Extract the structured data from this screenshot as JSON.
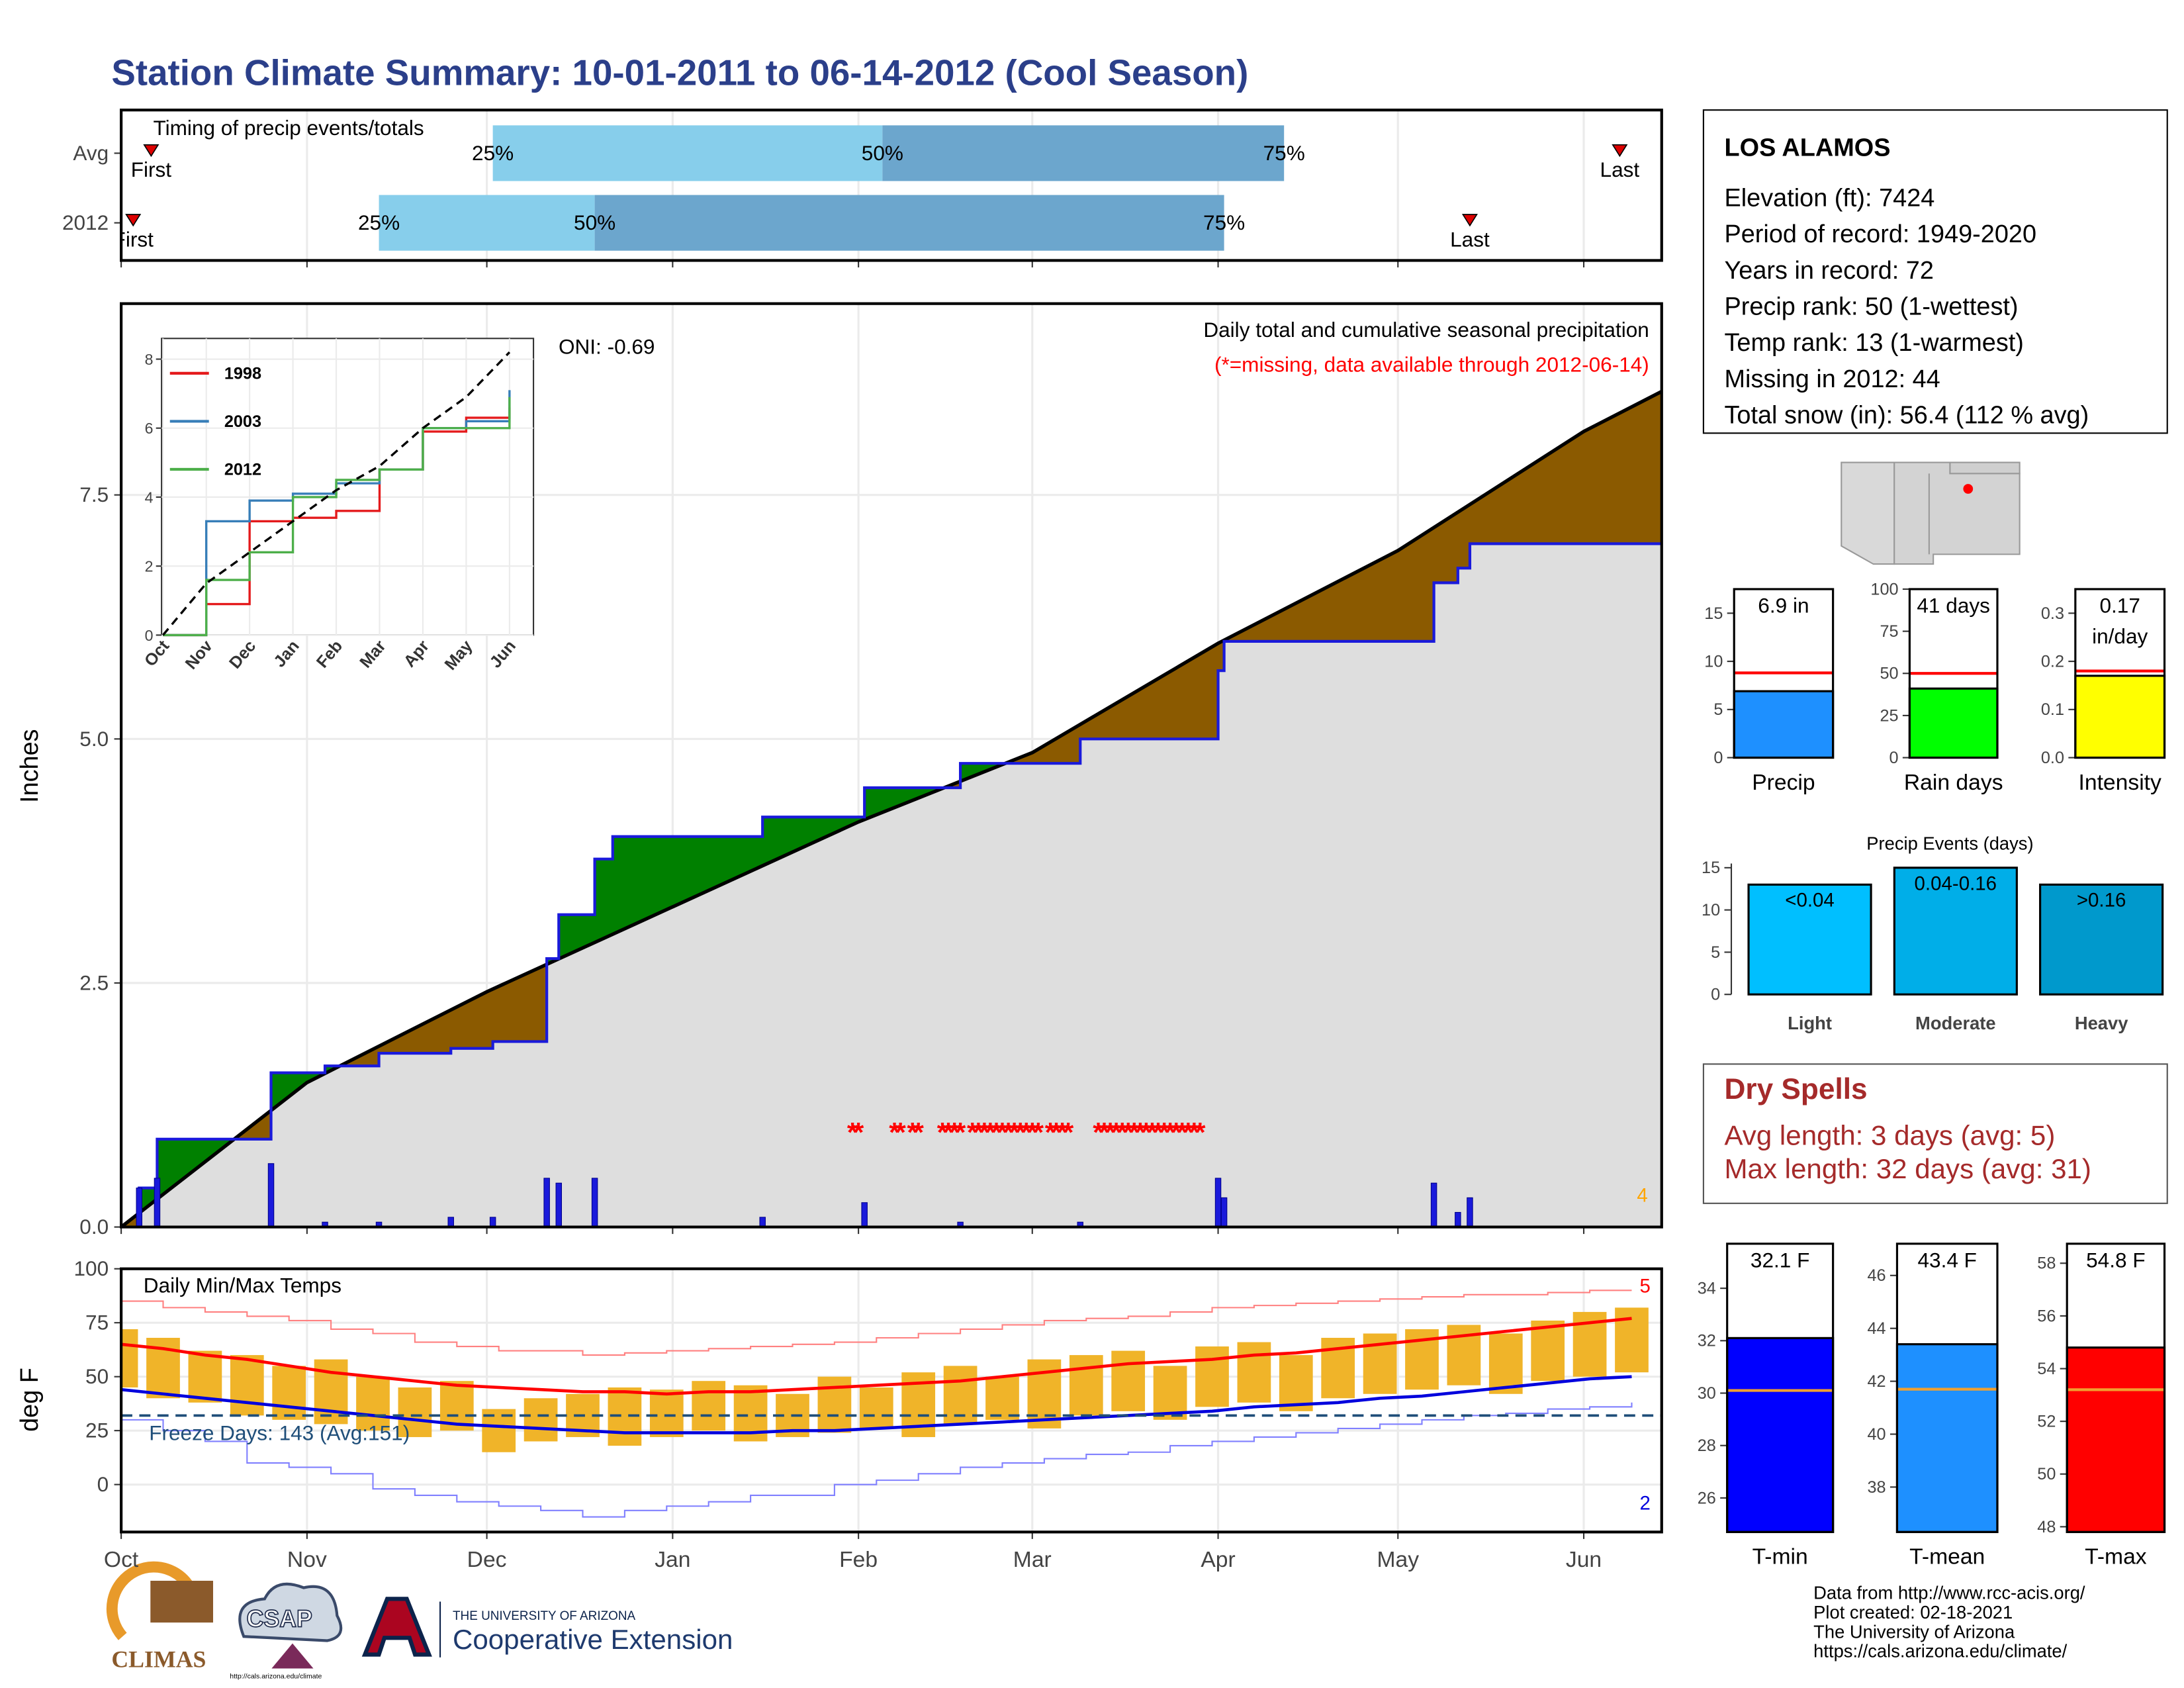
{
  "title": "Station Climate Summary: 10-01-2011 to 06-14-2012 (Cool Season)",
  "station": {
    "name": "LOS ALAMOS",
    "lines": [
      "Elevation (ft): 7424",
      "Period of record: 1949-2020",
      "Years in record: 72",
      "Precip rank: 50 (1-wettest)",
      "Temp rank: 13 (1-warmest)",
      "Missing in 2012: 44",
      "Total snow (in): 56.4 (112 % avg)"
    ]
  },
  "dry_spells": {
    "title": "Dry Spells",
    "lines": [
      "Avg length: 3 days (avg: 5)",
      "Max length: 32 days (avg: 31)"
    ]
  },
  "footer": {
    "lines": [
      "Data from http://www.rcc-acis.org/",
      "Plot created: 02-18-2021",
      "The University of Arizona",
      "https://cals.arizona.edu/climate/"
    ]
  },
  "logos": {
    "climas": "CLIMAS",
    "csap": "CSAP",
    "csap_url": "http://cals.arizona.edu/climate",
    "ua": "THE UNIVERSITY OF ARIZONA",
    "coop": "Cooperative Extension"
  },
  "chart_data": [
    {
      "type": "timing",
      "title": "Timing of precip events/totals",
      "categories": [
        "Avg",
        "2012"
      ],
      "xlim": [
        0,
        257
      ],
      "xticks": [
        0,
        31,
        61,
        92,
        123,
        152,
        183,
        213,
        244
      ],
      "first": [
        5,
        2
      ],
      "p25": [
        62,
        43
      ],
      "p50": [
        127,
        79
      ],
      "p75": [
        194,
        184
      ],
      "last": [
        250,
        225
      ],
      "first_label": "First",
      "last_label": "Last",
      "quantile_labels": [
        "25%",
        "50%",
        "75%"
      ],
      "colors": [
        "#87ceeb",
        "#6ca6cd"
      ],
      "marker_color": "#dd0000"
    },
    {
      "type": "cumulative",
      "title": "Daily total and cumulative seasonal precipitation",
      "subtitle": "(*=missing, data available through 2012-06-14)",
      "annotation": "ONI: -0.69",
      "corner_note": "4",
      "ylabel": "Inches",
      "xlim": [
        0,
        257
      ],
      "ylim": [
        0,
        9.46
      ],
      "xticks": [
        0,
        31,
        61,
        92,
        123,
        152,
        183,
        213,
        244
      ],
      "yticks": [
        {
          "value": 0,
          "label": "0.0"
        },
        2.5,
        {
          "value": 5,
          "label": "5.0"
        },
        7.5
      ],
      "grid": true,
      "base_color": "#dedede",
      "series": [
        {
          "color": "#1a1adb",
          "fill": "#008000",
          "x": [
            0,
            3,
            6,
            25,
            34,
            43,
            55,
            62,
            71,
            73,
            79,
            82,
            107,
            124,
            140,
            160,
            183,
            184,
            219,
            223,
            225,
            257
          ],
          "values": [
            0,
            0.4,
            0.9,
            1.58,
            1.65,
            1.78,
            1.83,
            1.9,
            2.75,
            3.2,
            3.77,
            4.0,
            4.2,
            4.5,
            4.75,
            5.0,
            5.7,
            6.0,
            6.6,
            6.75,
            7.0,
            7.0
          ]
        },
        {
          "color": "#000000",
          "fill": "#8b5a00",
          "x": [
            0,
            31,
            61,
            92,
            123,
            152,
            183,
            213,
            244,
            257
          ],
          "values": [
            0,
            1.48,
            2.41,
            3.28,
            4.15,
            4.86,
            5.98,
            6.93,
            8.15,
            8.56
          ]
        }
      ],
      "daily": {
        "color": "#1a1adb",
        "x": [
          3,
          6,
          25,
          34,
          43,
          55,
          62,
          71,
          73,
          79,
          107,
          124,
          140,
          160,
          183,
          184,
          219,
          223,
          225
        ],
        "values": [
          0.4,
          0.5,
          0.65,
          0.05,
          0.05,
          0.1,
          0.1,
          0.5,
          0.45,
          0.5,
          0.1,
          0.25,
          0.05,
          0.05,
          0.5,
          0.3,
          0.45,
          0.15,
          0.3
        ]
      },
      "missing": {
        "color": "#ff0000",
        "marker": "*",
        "x": [
          122,
          123,
          129,
          130,
          132,
          133,
          137,
          138,
          139,
          140,
          142,
          143,
          144,
          145,
          146,
          147,
          148,
          149,
          150,
          151,
          152,
          153,
          155,
          156,
          157,
          158,
          163,
          164,
          165,
          166,
          167,
          168,
          169,
          170,
          171,
          172,
          173,
          174,
          175,
          176,
          177,
          178,
          179,
          180
        ]
      }
    },
    {
      "type": "line",
      "categories": [
        "Oct",
        "Nov",
        "Dec",
        "Jan",
        "Feb",
        "Mar",
        "Apr",
        "May",
        "Jun"
      ],
      "ylim": [
        0,
        8.6
      ],
      "yticks": [
        0,
        2,
        4,
        6,
        8
      ],
      "legend": "top-left",
      "series": [
        {
          "name": "1998",
          "color": "#e41a1c",
          "values": [
            0,
            0.9,
            3.3,
            3.4,
            3.6,
            4.8,
            5.9,
            6.3,
            6.6
          ]
        },
        {
          "name": "2003",
          "color": "#377eb8",
          "values": [
            0,
            3.3,
            3.9,
            4.1,
            4.4,
            4.8,
            6.0,
            6.2,
            7.1
          ]
        },
        {
          "name": "2012",
          "color": "#4daf4a",
          "values": [
            0,
            1.6,
            2.4,
            4.0,
            4.5,
            4.8,
            6.0,
            6.0,
            6.9
          ]
        },
        {
          "color": "#000000",
          "dash": true,
          "values": [
            0,
            1.5,
            2.4,
            3.3,
            4.2,
            4.9,
            6.0,
            6.9,
            8.2
          ]
        }
      ]
    },
    {
      "type": "bar",
      "categories": [
        "Precip"
      ],
      "values": [
        6.9
      ],
      "value_labels": [
        "6.9 in"
      ],
      "color": "#1e90ff",
      "ref": 8.8,
      "ref_color": "#ff0000",
      "ylim": [
        0,
        17.5
      ],
      "yticks": [
        0,
        5,
        10,
        15
      ]
    },
    {
      "type": "bar",
      "categories": [
        "Rain days"
      ],
      "values": [
        41
      ],
      "value_labels": [
        "41 days"
      ],
      "color": "#00ff00",
      "ref": 50,
      "ref_color": "#ff0000",
      "ylim": [
        0,
        100
      ],
      "yticks": [
        0,
        25,
        50,
        75,
        100
      ]
    },
    {
      "type": "bar",
      "categories": [
        "Intensity"
      ],
      "values": [
        0.17
      ],
      "value_labels": [
        "0.17 in/day"
      ],
      "color": "#ffff00",
      "ref": 0.18,
      "ref_color": "#ff0000",
      "ylim": [
        0,
        0.35
      ],
      "yticks": [
        {
          "value": 0,
          "label": "0.0"
        },
        0.1,
        0.2,
        0.3
      ]
    },
    {
      "type": "bar",
      "title": "Precip Events (days)",
      "categories": [
        "Light",
        "Moderate",
        "Heavy"
      ],
      "values": [
        13,
        15,
        13
      ],
      "value_labels": [
        "<0.04",
        "0.04-0.16",
        ">0.16"
      ],
      "colors": [
        "#00bfff",
        "#00aee8",
        "#0099cc"
      ],
      "ylim": [
        0,
        15.5
      ],
      "yticks": [
        0,
        5,
        10,
        15
      ]
    },
    {
      "type": "temps",
      "title": "Daily Min/Max Temps",
      "annotation": "Freeze Days: 143 (Avg:151)",
      "ylabel": "deg F",
      "count_max": 5,
      "count_min": 2,
      "xlim": [
        0,
        257
      ],
      "ylim": [
        -22,
        100
      ],
      "xticks": [
        {
          "value": 0,
          "label": "Oct"
        },
        {
          "value": 31,
          "label": "Nov"
        },
        {
          "value": 61,
          "label": "Dec"
        },
        {
          "value": 92,
          "label": "Jan"
        },
        {
          "value": 123,
          "label": "Feb"
        },
        {
          "value": 152,
          "label": "Mar"
        },
        {
          "value": 183,
          "label": "Apr"
        },
        {
          "value": 213,
          "label": "May"
        },
        {
          "value": 244,
          "label": "Jun"
        }
      ],
      "yticks": [
        0,
        25,
        50,
        75,
        100
      ],
      "grid": true,
      "x": [
        0,
        7,
        14,
        21,
        28,
        35,
        42,
        49,
        56,
        63,
        70,
        77,
        84,
        91,
        98,
        105,
        112,
        119,
        126,
        133,
        140,
        147,
        154,
        161,
        168,
        175,
        182,
        189,
        196,
        203,
        210,
        217,
        224,
        231,
        238,
        245,
        252
      ],
      "max": [
        72,
        68,
        62,
        60,
        55,
        58,
        50,
        45,
        48,
        35,
        40,
        42,
        45,
        44,
        48,
        46,
        42,
        50,
        45,
        52,
        55,
        50,
        58,
        60,
        62,
        55,
        64,
        66,
        60,
        68,
        70,
        72,
        74,
        70,
        76,
        80,
        82
      ],
      "min": [
        45,
        40,
        38,
        32,
        30,
        28,
        25,
        22,
        25,
        15,
        20,
        22,
        18,
        22,
        25,
        20,
        22,
        24,
        26,
        22,
        28,
        30,
        26,
        32,
        34,
        30,
        36,
        38,
        34,
        40,
        42,
        44,
        46,
        42,
        48,
        50,
        52
      ],
      "range_color": "#f0b429",
      "avg_max": {
        "color": "#ff0000",
        "values": [
          65,
          63,
          60,
          58,
          55,
          52,
          50,
          48,
          46,
          45,
          44,
          43,
          43,
          42,
          43,
          43,
          44,
          45,
          46,
          47,
          48,
          50,
          52,
          54,
          56,
          57,
          58,
          60,
          61,
          63,
          65,
          67,
          69,
          71,
          73,
          75,
          77
        ]
      },
      "avg_min": {
        "color": "#0000dd",
        "values": [
          44,
          42,
          40,
          38,
          36,
          34,
          32,
          30,
          28,
          27,
          26,
          25,
          24,
          24,
          24,
          24,
          25,
          25,
          26,
          27,
          28,
          29,
          30,
          31,
          32,
          33,
          34,
          36,
          37,
          38,
          40,
          41,
          43,
          45,
          47,
          49,
          50
        ]
      },
      "record_max": {
        "color": "#ff8080",
        "values": [
          85,
          82,
          80,
          78,
          76,
          72,
          70,
          66,
          64,
          62,
          62,
          60,
          61,
          62,
          63,
          64,
          65,
          66,
          68,
          70,
          72,
          74,
          76,
          77,
          78,
          80,
          82,
          83,
          84,
          85,
          86,
          87,
          88,
          88,
          89,
          90,
          90
        ]
      },
      "record_min": {
        "color": "#8080ff",
        "values": [
          30,
          25,
          20,
          10,
          8,
          5,
          -2,
          -5,
          -8,
          -10,
          -12,
          -15,
          -12,
          -10,
          -8,
          -5,
          -5,
          0,
          2,
          5,
          8,
          10,
          12,
          14,
          15,
          18,
          20,
          22,
          24,
          26,
          28,
          30,
          32,
          33,
          35,
          36,
          38
        ]
      },
      "freeze": {
        "value": 32,
        "color": "#1f4e79"
      }
    },
    {
      "type": "bar",
      "categories": [
        "T-min"
      ],
      "values": [
        32.1
      ],
      "value_labels": [
        "32.1 F"
      ],
      "color": "#0000ff",
      "ref": 30.1,
      "ref_color": "#f0a030",
      "ylim": [
        24.7,
        35.7
      ],
      "yticks": [
        26,
        28,
        30,
        32,
        34
      ]
    },
    {
      "type": "bar",
      "categories": [
        "T-mean"
      ],
      "values": [
        43.4
      ],
      "value_labels": [
        "43.4 F"
      ],
      "color": "#1e90ff",
      "ref": 41.7,
      "ref_color": "#f0a030",
      "ylim": [
        36.3,
        47.2
      ],
      "yticks": [
        38,
        40,
        42,
        44,
        46
      ]
    },
    {
      "type": "bar",
      "categories": [
        "T-max"
      ],
      "values": [
        54.8
      ],
      "value_labels": [
        "54.8 F"
      ],
      "color": "#ff0000",
      "ref": 53.2,
      "ref_color": "#f0a030",
      "ylim": [
        47.8,
        58.74
      ],
      "yticks": [
        48,
        50,
        52,
        54,
        56,
        58
      ]
    }
  ]
}
